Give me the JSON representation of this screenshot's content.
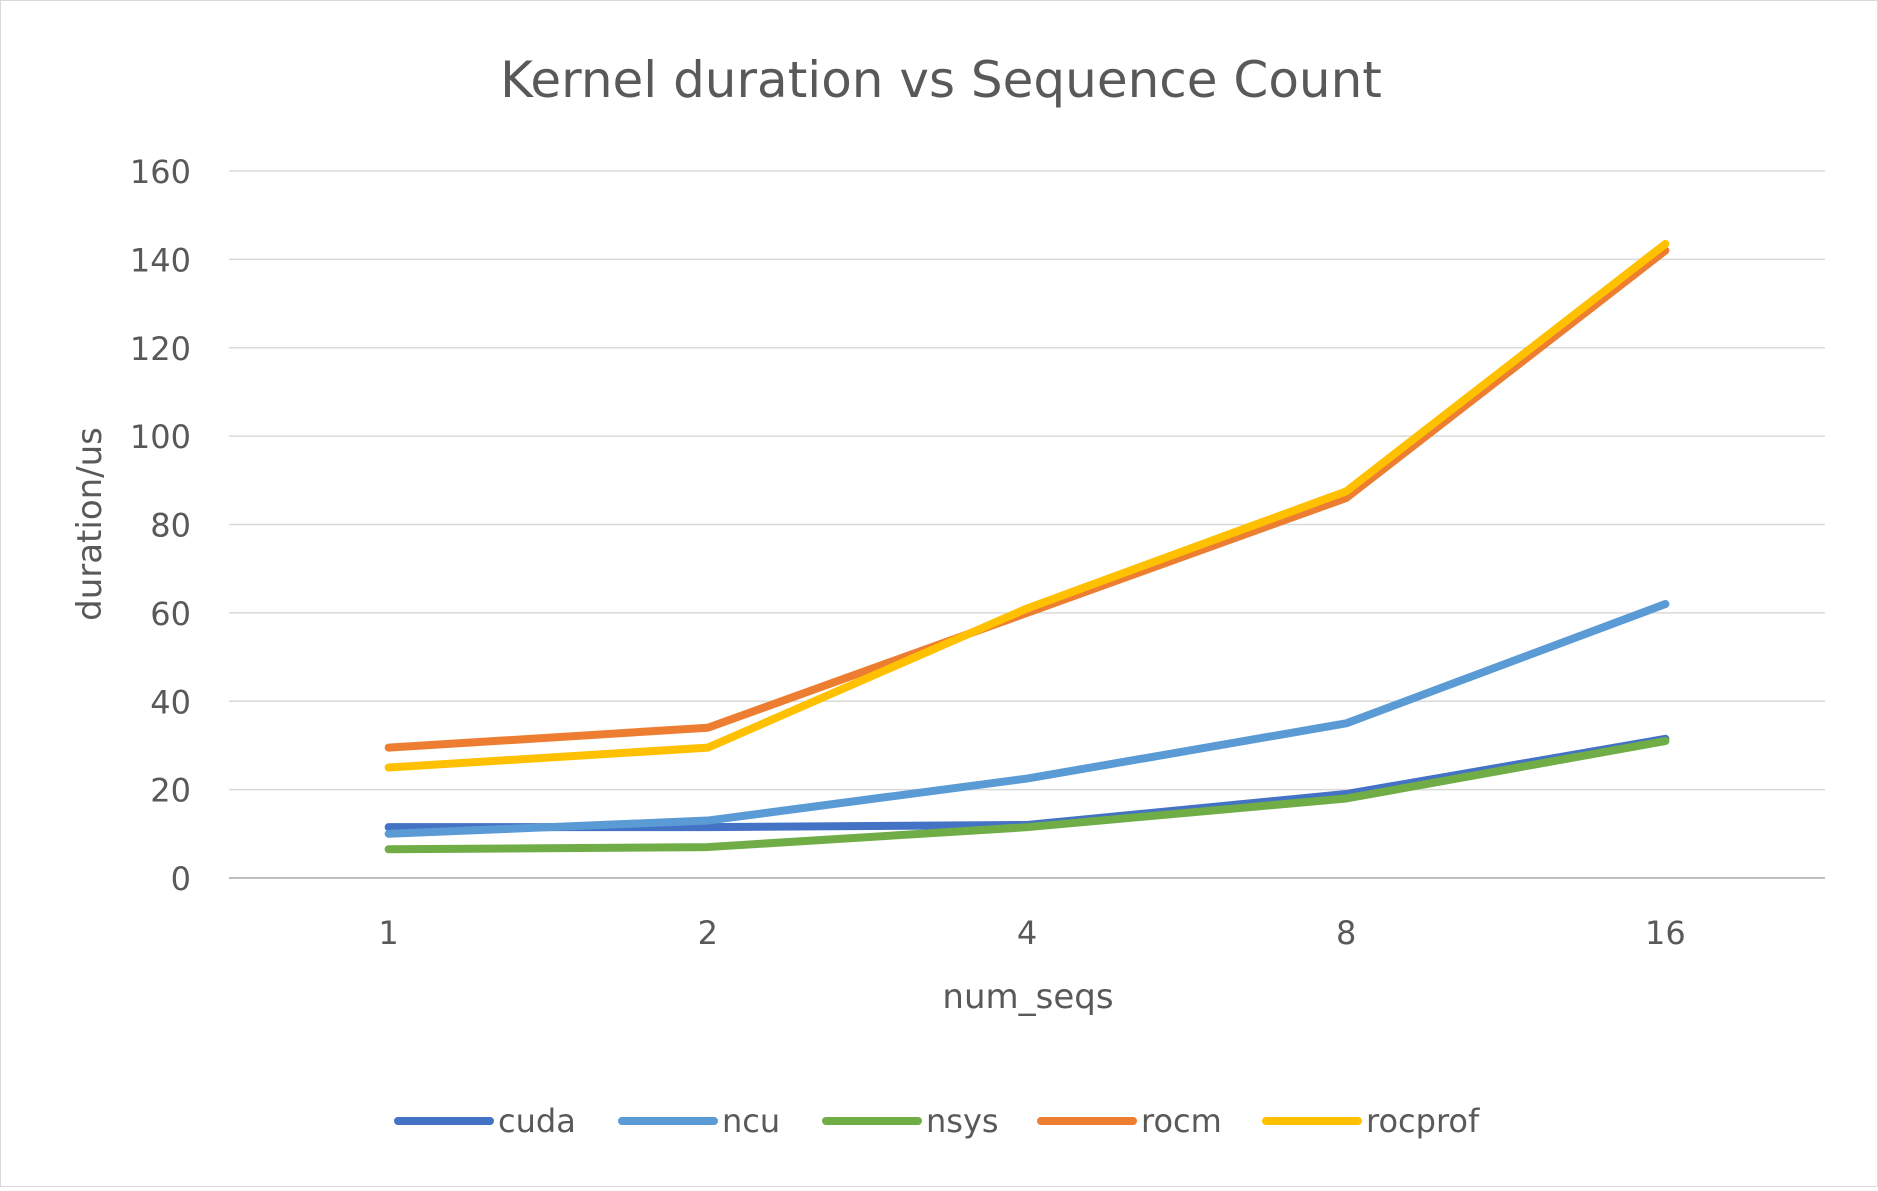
{
  "chart_data": {
    "type": "line",
    "title": "Kernel duration vs Sequence Count",
    "xlabel": "num_seqs",
    "ylabel": "duration/us",
    "categories": [
      "1",
      "2",
      "4",
      "8",
      "16"
    ],
    "ylim": [
      0,
      160
    ],
    "yticks": [
      "0",
      "20",
      "40",
      "60",
      "80",
      "100",
      "120",
      "140",
      "160"
    ],
    "grid": "horizontal",
    "legend_position": "bottom",
    "series": [
      {
        "name": "cuda",
        "color": "#4472c4",
        "values": [
          11.5,
          11.5,
          12,
          19,
          31.5
        ]
      },
      {
        "name": "ncu",
        "color": "#5b9bd5",
        "values": [
          10,
          13,
          22.5,
          35,
          62
        ]
      },
      {
        "name": "nsys",
        "color": "#70ad47",
        "values": [
          6.5,
          7,
          11.5,
          18,
          31
        ]
      },
      {
        "name": "rocm",
        "color": "#ed7d31",
        "values": [
          29.5,
          34,
          60,
          86,
          142
        ]
      },
      {
        "name": "rocprof",
        "color": "#ffc000",
        "values": [
          25,
          29.5,
          61,
          87.5,
          143.5
        ]
      }
    ]
  }
}
